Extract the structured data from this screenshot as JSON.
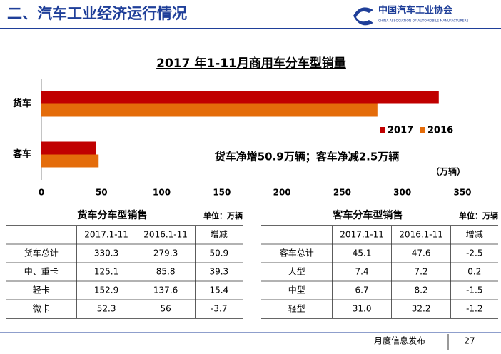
{
  "header": {
    "title": "二、汽车工业经济运行情况",
    "logo_name": "中国汽车工业协会",
    "logo_sub": "CHINA ASSOCIATION OF AUTOMOBILE MANUFACTURERS"
  },
  "chart_data": {
    "type": "hbar",
    "title": "2017 年1-11月商用车分车型销量",
    "categories": [
      "货车",
      "客车"
    ],
    "series": [
      {
        "name": "2017",
        "color": "#c00000",
        "values": [
          330.3,
          45.1
        ]
      },
      {
        "name": "2016",
        "color": "#e46c0a",
        "values": [
          279.3,
          47.6
        ]
      }
    ],
    "xlim": [
      0,
      350
    ],
    "xticks": [
      0,
      50,
      100,
      150,
      200,
      250,
      300,
      350
    ],
    "grid": false,
    "legend": "right",
    "annotation": "货车净增50.9万辆；客车净减2.5万辆",
    "unit": "（万辆）"
  },
  "tables": [
    {
      "title": "货车分车型销售",
      "unit": "单位：万辆",
      "columns": [
        "2017.1-11",
        "2016.1-11",
        "增减"
      ],
      "rows": [
        [
          "货车总计",
          "330.3",
          "279.3",
          "50.9"
        ],
        [
          "中、重卡",
          "125.1",
          "85.8",
          "39.3"
        ],
        [
          "轻卡",
          "152.9",
          "137.6",
          "15.4"
        ],
        [
          "微卡",
          "52.3",
          "56",
          "-3.7"
        ]
      ]
    },
    {
      "title": "客车分车型销售",
      "unit": "单位：万辆",
      "columns": [
        "2017.1-11",
        "2016.1-11",
        "增减"
      ],
      "rows": [
        [
          "客车总计",
          "45.1",
          "47.6",
          "-2.5"
        ],
        [
          "大型",
          "7.4",
          "7.2",
          "0.2"
        ],
        [
          "中型",
          "6.7",
          "8.2",
          "-1.5"
        ],
        [
          "轻型",
          "31.0",
          "32.2",
          "-1.2"
        ]
      ]
    }
  ],
  "footer": {
    "label": "月度信息发布",
    "page": "27"
  }
}
